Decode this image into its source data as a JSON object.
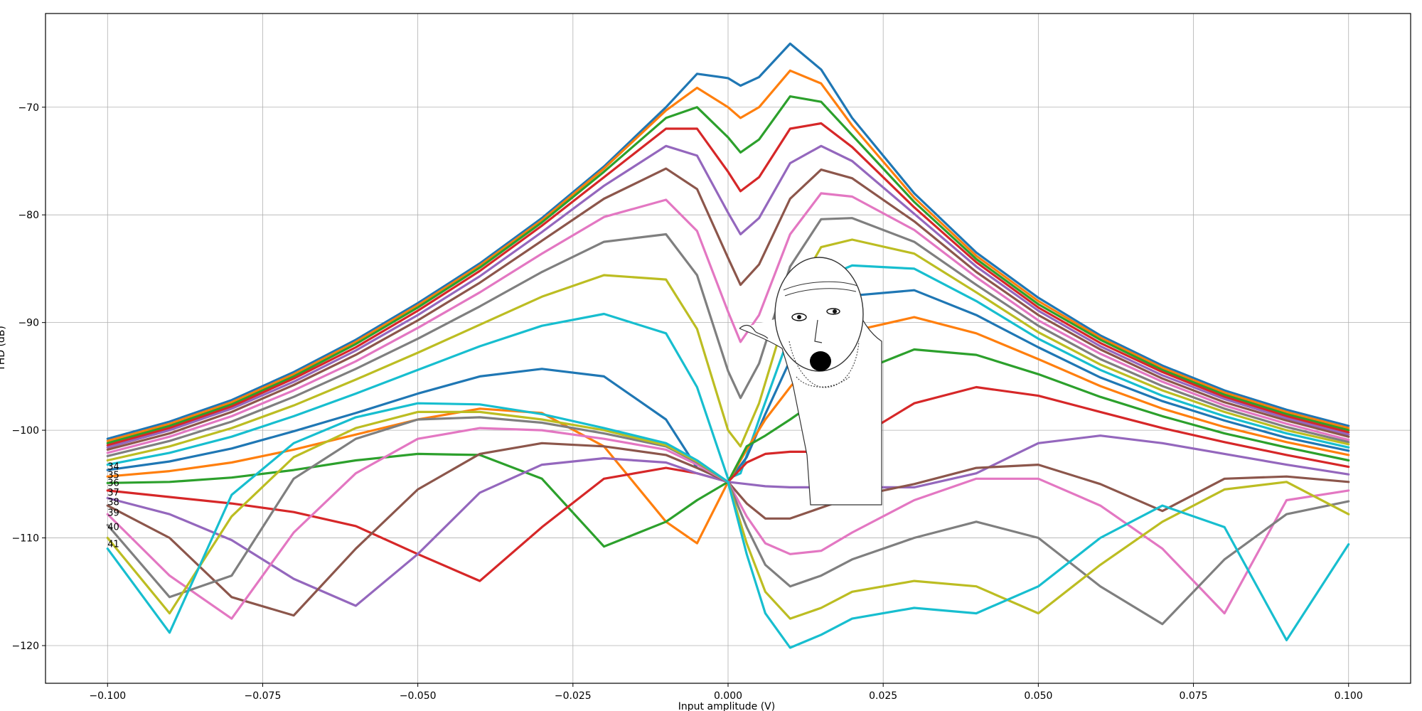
{
  "chart_data": {
    "type": "line",
    "title": "",
    "xlabel": "Input amplitude (V)",
    "ylabel": "THD (dB)",
    "xlim": [
      -0.11,
      0.11
    ],
    "ylim": [
      -123.5,
      -61.3
    ],
    "grid": true,
    "x_ticks": [
      -0.1,
      -0.075,
      -0.05,
      -0.025,
      0.0,
      0.025,
      0.05,
      0.075,
      0.1
    ],
    "x_tick_labels": [
      "−0.100",
      "−0.075",
      "−0.050",
      "−0.025",
      "0.000",
      "0.025",
      "0.050",
      "0.075",
      "0.100"
    ],
    "y_ticks": [
      -120,
      -110,
      -100,
      -90,
      -80,
      -70
    ],
    "y_tick_labels": [
      "−120",
      "−110",
      "−100",
      "−90",
      "−80",
      "−70"
    ],
    "palette": [
      "#1f77b4",
      "#ff7f0e",
      "#2ca02c",
      "#d62728",
      "#9467bd",
      "#8c564b",
      "#e377c2",
      "#7f7f7f",
      "#bcbd22",
      "#17becf"
    ],
    "curve_labels": [
      {
        "text": "34",
        "y": -103.4
      },
      {
        "text": "35",
        "y": -104.2
      },
      {
        "text": "36",
        "y": -104.9
      },
      {
        "text": "37",
        "y": -105.8
      },
      {
        "text": "38",
        "y": -106.7
      },
      {
        "text": "39",
        "y": -107.7
      },
      {
        "text": "40",
        "y": -109.0
      },
      {
        "text": "41",
        "y": -110.6
      }
    ],
    "series": [
      {
        "x": [
          -0.1,
          -0.09,
          -0.08,
          -0.07,
          -0.06,
          -0.05,
          -0.04,
          -0.03,
          -0.02,
          -0.01,
          -0.005,
          0.0,
          0.002,
          0.005,
          0.01,
          0.015,
          0.02,
          0.03,
          0.04,
          0.05,
          0.06,
          0.07,
          0.08,
          0.09,
          0.1
        ],
        "y": [
          -100.8,
          -99.2,
          -97.2,
          -94.6,
          -91.6,
          -88.2,
          -84.5,
          -80.3,
          -75.5,
          -70.0,
          -66.9,
          -67.3,
          -68.0,
          -67.2,
          -64.1,
          -66.5,
          -71.0,
          -78.0,
          -83.5,
          -87.7,
          -91.2,
          -94.0,
          -96.3,
          -98.1,
          -99.6
        ]
      },
      {
        "x": [
          -0.1,
          -0.09,
          -0.08,
          -0.07,
          -0.06,
          -0.05,
          -0.04,
          -0.03,
          -0.02,
          -0.01,
          -0.005,
          0.0,
          0.002,
          0.005,
          0.01,
          0.015,
          0.02,
          0.03,
          0.04,
          0.05,
          0.06,
          0.07,
          0.08,
          0.09,
          0.1
        ],
        "y": [
          -101.0,
          -99.4,
          -97.4,
          -94.8,
          -91.8,
          -88.4,
          -84.7,
          -80.5,
          -75.7,
          -70.3,
          -68.2,
          -70.0,
          -71.0,
          -70.0,
          -66.6,
          -67.8,
          -71.7,
          -78.4,
          -83.8,
          -88.0,
          -91.4,
          -94.2,
          -96.5,
          -98.3,
          -99.8
        ]
      },
      {
        "x": [
          -0.1,
          -0.09,
          -0.08,
          -0.07,
          -0.06,
          -0.05,
          -0.04,
          -0.03,
          -0.02,
          -0.01,
          -0.005,
          0.0,
          0.002,
          0.005,
          0.01,
          0.015,
          0.02,
          0.03,
          0.04,
          0.05,
          0.06,
          0.07,
          0.08,
          0.09,
          0.1
        ],
        "y": [
          -101.2,
          -99.6,
          -97.6,
          -95.0,
          -92.0,
          -88.6,
          -84.9,
          -80.7,
          -76.0,
          -71.0,
          -70.0,
          -72.8,
          -74.2,
          -73.0,
          -69.0,
          -69.5,
          -72.6,
          -78.8,
          -84.1,
          -88.3,
          -91.6,
          -94.4,
          -96.7,
          -98.5,
          -100.0
        ]
      },
      {
        "x": [
          -0.1,
          -0.09,
          -0.08,
          -0.07,
          -0.06,
          -0.05,
          -0.04,
          -0.03,
          -0.02,
          -0.01,
          -0.005,
          0.0,
          0.002,
          0.005,
          0.01,
          0.015,
          0.02,
          0.03,
          0.04,
          0.05,
          0.06,
          0.07,
          0.08,
          0.09,
          0.1
        ],
        "y": [
          -101.4,
          -99.8,
          -97.8,
          -95.2,
          -92.3,
          -88.9,
          -85.2,
          -81.0,
          -76.5,
          -72.0,
          -72.0,
          -76.0,
          -77.8,
          -76.5,
          -72.0,
          -71.5,
          -73.7,
          -79.3,
          -84.4,
          -88.6,
          -91.9,
          -94.6,
          -96.9,
          -98.7,
          -100.2
        ]
      },
      {
        "x": [
          -0.1,
          -0.09,
          -0.08,
          -0.07,
          -0.06,
          -0.05,
          -0.04,
          -0.03,
          -0.02,
          -0.01,
          -0.005,
          0.0,
          0.002,
          0.005,
          0.01,
          0.015,
          0.02,
          0.03,
          0.04,
          0.05,
          0.06,
          0.07,
          0.08,
          0.09,
          0.1
        ],
        "y": [
          -101.6,
          -100.0,
          -98.0,
          -95.5,
          -92.6,
          -89.3,
          -85.7,
          -81.6,
          -77.3,
          -73.6,
          -74.5,
          -79.8,
          -81.8,
          -80.3,
          -75.2,
          -73.6,
          -75.0,
          -79.9,
          -84.8,
          -88.9,
          -92.2,
          -94.9,
          -97.1,
          -98.9,
          -100.4
        ]
      },
      {
        "x": [
          -0.1,
          -0.09,
          -0.08,
          -0.07,
          -0.06,
          -0.05,
          -0.04,
          -0.03,
          -0.02,
          -0.01,
          -0.005,
          0.0,
          0.002,
          0.005,
          0.01,
          0.015,
          0.02,
          0.03,
          0.04,
          0.05,
          0.06,
          0.07,
          0.08,
          0.09,
          0.1
        ],
        "y": [
          -101.8,
          -100.3,
          -98.3,
          -95.8,
          -93.0,
          -89.8,
          -86.3,
          -82.4,
          -78.5,
          -75.7,
          -77.6,
          -84.0,
          -86.5,
          -84.6,
          -78.5,
          -75.8,
          -76.6,
          -80.6,
          -85.3,
          -89.3,
          -92.5,
          -95.2,
          -97.4,
          -99.1,
          -100.6
        ]
      },
      {
        "x": [
          -0.1,
          -0.09,
          -0.08,
          -0.07,
          -0.06,
          -0.05,
          -0.04,
          -0.03,
          -0.02,
          -0.01,
          -0.005,
          0.0,
          0.002,
          0.005,
          0.01,
          0.015,
          0.02,
          0.03,
          0.04,
          0.05,
          0.06,
          0.07,
          0.08,
          0.09,
          0.1
        ],
        "y": [
          -102.1,
          -100.6,
          -98.7,
          -96.3,
          -93.6,
          -90.5,
          -87.2,
          -83.6,
          -80.2,
          -78.6,
          -81.5,
          -89.0,
          -91.8,
          -89.3,
          -81.8,
          -78.0,
          -78.3,
          -81.4,
          -85.8,
          -89.8,
          -92.9,
          -95.5,
          -97.7,
          -99.4,
          -100.9
        ]
      },
      {
        "x": [
          -0.1,
          -0.09,
          -0.08,
          -0.07,
          -0.06,
          -0.05,
          -0.04,
          -0.03,
          -0.02,
          -0.01,
          -0.005,
          0.0,
          0.002,
          0.005,
          0.01,
          0.015,
          0.02,
          0.03,
          0.04,
          0.05,
          0.06,
          0.07,
          0.08,
          0.09,
          0.1
        ],
        "y": [
          -102.4,
          -101.0,
          -99.2,
          -96.9,
          -94.3,
          -91.5,
          -88.5,
          -85.3,
          -82.5,
          -81.8,
          -85.6,
          -94.5,
          -97.0,
          -93.8,
          -84.8,
          -80.4,
          -80.3,
          -82.5,
          -86.5,
          -90.3,
          -93.4,
          -95.9,
          -98.0,
          -99.7,
          -101.1
        ]
      },
      {
        "x": [
          -0.1,
          -0.09,
          -0.08,
          -0.07,
          -0.06,
          -0.05,
          -0.04,
          -0.03,
          -0.02,
          -0.01,
          -0.005,
          0.0,
          0.002,
          0.005,
          0.01,
          0.015,
          0.02,
          0.03,
          0.04,
          0.05,
          0.06,
          0.07,
          0.08,
          0.09,
          0.1
        ],
        "y": [
          -102.8,
          -101.5,
          -99.8,
          -97.7,
          -95.3,
          -92.8,
          -90.2,
          -87.6,
          -85.6,
          -86.0,
          -90.6,
          -100.0,
          -101.5,
          -97.5,
          -88.0,
          -83.0,
          -82.3,
          -83.6,
          -87.2,
          -90.9,
          -93.9,
          -96.3,
          -98.3,
          -100.0,
          -101.3
        ]
      },
      {
        "x": [
          -0.1,
          -0.09,
          -0.08,
          -0.07,
          -0.06,
          -0.05,
          -0.04,
          -0.03,
          -0.02,
          -0.01,
          -0.005,
          0.0,
          0.002,
          0.005,
          0.01,
          0.015,
          0.02,
          0.03,
          0.04,
          0.05,
          0.06,
          0.07,
          0.08,
          0.09,
          0.1
        ],
        "y": [
          -103.2,
          -102.1,
          -100.6,
          -98.7,
          -96.6,
          -94.4,
          -92.2,
          -90.3,
          -89.2,
          -91.0,
          -96.0,
          -104.5,
          -104.0,
          -99.0,
          -91.0,
          -85.9,
          -84.7,
          -85.0,
          -88.0,
          -91.5,
          -94.4,
          -96.8,
          -98.7,
          -100.3,
          -101.6
        ]
      },
      {
        "x": [
          -0.1,
          -0.09,
          -0.08,
          -0.07,
          -0.06,
          -0.05,
          -0.04,
          -0.03,
          -0.02,
          -0.01,
          -0.005,
          0.0,
          0.003,
          0.006,
          0.01,
          0.015,
          0.02,
          0.03,
          0.04,
          0.05,
          0.06,
          0.07,
          0.08,
          0.09,
          0.1
        ],
        "y": [
          -103.7,
          -102.9,
          -101.7,
          -100.1,
          -98.4,
          -96.6,
          -95.0,
          -94.3,
          -95.0,
          -99.0,
          -103.5,
          -104.8,
          -102.5,
          -98.5,
          -93.5,
          -89.0,
          -87.5,
          -87.0,
          -89.3,
          -92.3,
          -95.1,
          -97.3,
          -99.1,
          -100.7,
          -101.9
        ]
      },
      {
        "x": [
          -0.1,
          -0.09,
          -0.08,
          -0.07,
          -0.06,
          -0.05,
          -0.04,
          -0.03,
          -0.02,
          -0.01,
          -0.005,
          0.0,
          0.003,
          0.006,
          0.01,
          0.015,
          0.02,
          0.03,
          0.04,
          0.05,
          0.06,
          0.07,
          0.08,
          0.09,
          0.1
        ],
        "y": [
          -104.3,
          -103.8,
          -103.0,
          -101.8,
          -100.4,
          -99.0,
          -98.0,
          -98.4,
          -101.5,
          -108.5,
          -110.5,
          -104.8,
          -101.8,
          -99.0,
          -96.0,
          -92.5,
          -90.8,
          -89.5,
          -91.0,
          -93.4,
          -95.9,
          -98.0,
          -99.7,
          -101.1,
          -102.3
        ]
      },
      {
        "x": [
          -0.1,
          -0.09,
          -0.08,
          -0.07,
          -0.06,
          -0.05,
          -0.04,
          -0.03,
          -0.02,
          -0.01,
          -0.005,
          0.0,
          0.003,
          0.006,
          0.01,
          0.015,
          0.02,
          0.03,
          0.04,
          0.05,
          0.06,
          0.07,
          0.08,
          0.09,
          0.1
        ],
        "y": [
          -104.9,
          -104.8,
          -104.4,
          -103.7,
          -102.8,
          -102.2,
          -102.3,
          -104.5,
          -110.8,
          -108.5,
          -106.5,
          -104.8,
          -101.5,
          -100.5,
          -99.0,
          -97.0,
          -94.8,
          -92.5,
          -93.0,
          -94.8,
          -96.9,
          -98.7,
          -100.3,
          -101.6,
          -102.8
        ]
      },
      {
        "x": [
          -0.1,
          -0.09,
          -0.08,
          -0.07,
          -0.06,
          -0.05,
          -0.04,
          -0.03,
          -0.02,
          -0.01,
          -0.005,
          0.0,
          0.003,
          0.006,
          0.01,
          0.015,
          0.02,
          0.03,
          0.04,
          0.05,
          0.06,
          0.07,
          0.08,
          0.09,
          0.1
        ],
        "y": [
          -105.6,
          -106.2,
          -106.8,
          -107.6,
          -108.9,
          -111.5,
          -114.0,
          -109.0,
          -104.5,
          -103.5,
          -104.0,
          -104.8,
          -103.0,
          -102.2,
          -102.0,
          -102.0,
          -101.0,
          -97.5,
          -96.0,
          -96.8,
          -98.3,
          -99.8,
          -101.1,
          -102.3,
          -103.4
        ]
      },
      {
        "x": [
          -0.1,
          -0.09,
          -0.08,
          -0.07,
          -0.06,
          -0.05,
          -0.04,
          -0.03,
          -0.02,
          -0.01,
          -0.005,
          0.0,
          0.003,
          0.006,
          0.01,
          0.015,
          0.02,
          0.03,
          0.04,
          0.05,
          0.06,
          0.07,
          0.08,
          0.09,
          0.1
        ],
        "y": [
          -106.3,
          -107.8,
          -110.2,
          -113.8,
          -116.3,
          -111.5,
          -105.8,
          -103.2,
          -102.6,
          -103.0,
          -104.0,
          -104.8,
          -105.0,
          -105.2,
          -105.3,
          -105.3,
          -105.3,
          -105.3,
          -104.0,
          -101.2,
          -100.5,
          -101.2,
          -102.2,
          -103.2,
          -104.1
        ]
      },
      {
        "x": [
          -0.1,
          -0.09,
          -0.08,
          -0.07,
          -0.06,
          -0.05,
          -0.04,
          -0.03,
          -0.02,
          -0.01,
          -0.005,
          0.0,
          0.003,
          0.006,
          0.01,
          0.015,
          0.02,
          0.03,
          0.04,
          0.05,
          0.06,
          0.07,
          0.08,
          0.09,
          0.1
        ],
        "y": [
          -107.0,
          -110.0,
          -115.5,
          -117.2,
          -111.0,
          -105.5,
          -102.2,
          -101.2,
          -101.5,
          -102.3,
          -103.5,
          -104.8,
          -106.8,
          -108.2,
          -108.2,
          -107.2,
          -106.2,
          -105.0,
          -103.5,
          -103.2,
          -105.0,
          -107.5,
          -104.5,
          -104.3,
          -104.8
        ]
      },
      {
        "x": [
          -0.1,
          -0.09,
          -0.08,
          -0.07,
          -0.06,
          -0.05,
          -0.04,
          -0.03,
          -0.02,
          -0.01,
          -0.005,
          0.0,
          0.003,
          0.006,
          0.01,
          0.015,
          0.02,
          0.03,
          0.04,
          0.05,
          0.06,
          0.07,
          0.08,
          0.09,
          0.1
        ],
        "y": [
          -107.8,
          -113.5,
          -117.5,
          -109.5,
          -104.0,
          -100.8,
          -99.8,
          -100.0,
          -100.8,
          -101.8,
          -103.2,
          -104.8,
          -108.0,
          -110.5,
          -111.5,
          -111.2,
          -109.5,
          -106.5,
          -104.5,
          -104.5,
          -107.0,
          -111.0,
          -117.0,
          -106.5,
          -105.6
        ]
      },
      {
        "x": [
          -0.1,
          -0.09,
          -0.08,
          -0.07,
          -0.06,
          -0.05,
          -0.04,
          -0.03,
          -0.02,
          -0.01,
          -0.005,
          0.0,
          0.003,
          0.006,
          0.01,
          0.015,
          0.02,
          0.03,
          0.04,
          0.05,
          0.06,
          0.07,
          0.08,
          0.09,
          0.1
        ],
        "y": [
          -108.8,
          -115.5,
          -113.5,
          -104.5,
          -100.8,
          -99.0,
          -98.8,
          -99.3,
          -100.3,
          -101.5,
          -103.0,
          -104.8,
          -109.0,
          -112.5,
          -114.5,
          -113.5,
          -112.0,
          -110.0,
          -108.5,
          -110.0,
          -114.5,
          -118.0,
          -112.0,
          -107.8,
          -106.6
        ]
      },
      {
        "x": [
          -0.1,
          -0.09,
          -0.08,
          -0.07,
          -0.06,
          -0.05,
          -0.04,
          -0.03,
          -0.02,
          -0.01,
          -0.005,
          0.0,
          0.003,
          0.006,
          0.01,
          0.015,
          0.02,
          0.03,
          0.04,
          0.05,
          0.06,
          0.07,
          0.08,
          0.09,
          0.1
        ],
        "y": [
          -110.0,
          -117.0,
          -108.0,
          -102.5,
          -99.8,
          -98.3,
          -98.3,
          -99.0,
          -100.0,
          -101.4,
          -102.9,
          -104.8,
          -110.5,
          -115.0,
          -117.5,
          -116.5,
          -115.0,
          -114.0,
          -114.5,
          -117.0,
          -112.5,
          -108.5,
          -105.5,
          -104.8,
          -107.8
        ]
      },
      {
        "x": [
          -0.1,
          -0.09,
          -0.08,
          -0.07,
          -0.06,
          -0.05,
          -0.04,
          -0.03,
          -0.02,
          -0.01,
          -0.005,
          0.0,
          0.003,
          0.006,
          0.01,
          0.015,
          0.02,
          0.03,
          0.04,
          0.05,
          0.06,
          0.07,
          0.08,
          0.09,
          0.1
        ],
        "y": [
          -111.0,
          -118.8,
          -106.0,
          -101.2,
          -98.8,
          -97.5,
          -97.6,
          -98.5,
          -99.8,
          -101.2,
          -102.8,
          -104.8,
          -111.5,
          -117.0,
          -120.2,
          -119.0,
          -117.5,
          -116.5,
          -117.0,
          -114.5,
          -110.0,
          -107.0,
          -109.0,
          -119.5,
          -110.6
        ]
      }
    ]
  }
}
